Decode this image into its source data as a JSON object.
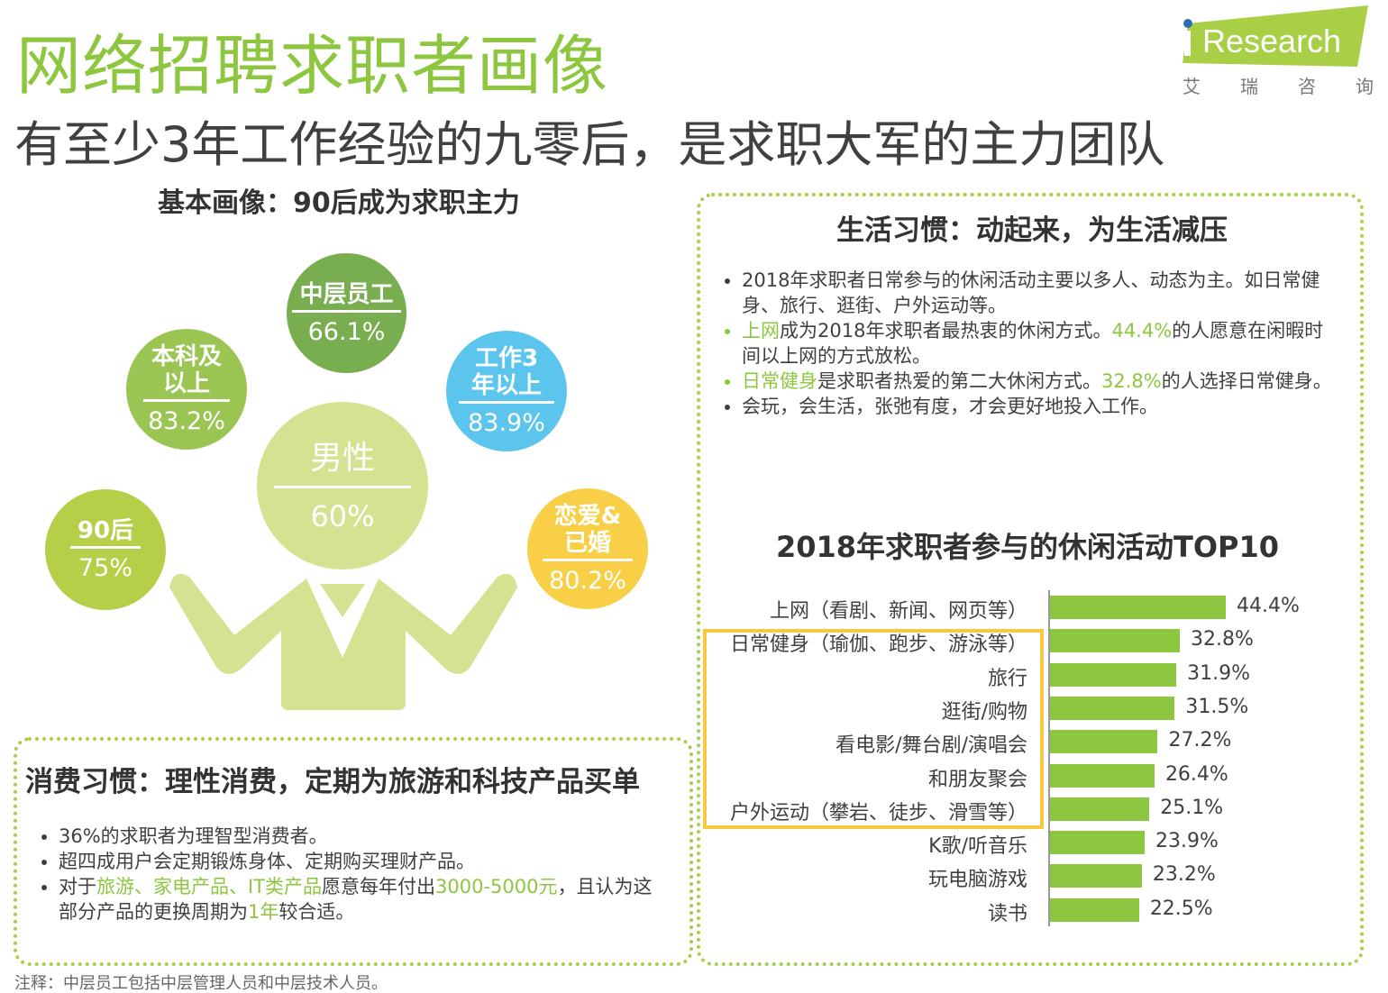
{
  "header": {
    "title": "网络招聘求职者画像",
    "subtitle": "有至少3年工作经验的九零后，是求职大军的主力团队",
    "logo_text": "iResearch",
    "logo_cn": [
      "艾",
      "瑞",
      "咨",
      "询"
    ]
  },
  "basic": {
    "title": "基本画像：90后成为求职主力",
    "circles": [
      {
        "label": "中层员工",
        "value": "66.1%",
        "color": "#78ad50"
      },
      {
        "label": "本科及以上",
        "value": "83.2%",
        "color": "#9bc553"
      },
      {
        "label": "工作3年以上",
        "value": "83.9%",
        "color": "#5bc5ee"
      },
      {
        "label": "90后",
        "value": "75%",
        "color": "#b5cf48"
      },
      {
        "label": "男性",
        "value": "60%",
        "color": "#d4e291"
      },
      {
        "label": "恋爱&已婚",
        "value": "80.2%",
        "color": "#f8cf46"
      }
    ]
  },
  "life": {
    "title": "生活习惯：动起来，为生活减压",
    "b1": "2018年求职者日常参与的休闲活动主要以多人、动态为主。如日常健身、旅行、逛街、户外运动等。",
    "b2a": "上网",
    "b2b": "成为2018年求职者最热衷的休闲方式。",
    "b2c": "44.4%",
    "b2d": "的人愿意在闲暇时间以上网的方式放松。",
    "b3a": "日常健身",
    "b3b": "是求职者热爱的第二大休闲方式。",
    "b3c": "32.8%",
    "b3d": "的人选择日常健身。",
    "b4": "会玩，会生活，张弛有度，才会更好地投入工作。"
  },
  "consume": {
    "title": "消费习惯：理性消费，定期为旅游和科技产品买单",
    "b1": "36%的求职者为理智型消费者。",
    "b2": "超四成用户会定期锻炼身体、定期购买理财产品。",
    "b3a": "对于",
    "b3b": "旅游、家电产品、IT类产品",
    "b3c": "愿意每年付出",
    "b3d": "3000-5000元",
    "b3e": "，且认为这部分产品的更换周期为",
    "b3f": "1年",
    "b3g": "较合适。"
  },
  "note": "注释：中层员工包括中层管理人员和中层技术人员。",
  "chart_data": {
    "type": "bar",
    "orientation": "horizontal",
    "title": "2018年求职者参与的休闲活动TOP10",
    "categories": [
      "上网（看剧、新闻、网页等）",
      "日常健身（瑜伽、跑步、游泳等）",
      "旅行",
      "逛街/购物",
      "看电影/舞台剧/演唱会",
      "和朋友聚会",
      "户外运动（攀岩、徒步、滑雪等）",
      "K歌/听音乐",
      "玩电脑游戏",
      "读书"
    ],
    "values": [
      44.4,
      32.8,
      31.9,
      31.5,
      27.2,
      26.4,
      25.1,
      23.9,
      23.2,
      22.5
    ],
    "value_labels": [
      "44.4%",
      "32.8%",
      "31.9%",
      "31.5%",
      "27.2%",
      "26.4%",
      "25.1%",
      "23.9%",
      "23.2%",
      "22.5%"
    ],
    "highlighted_range": [
      "日常健身（瑜伽、跑步、游泳等）",
      "户外运动（攀岩、徒步、滑雪等）"
    ],
    "bar_color": "#8dc63f",
    "highlight_color": "#f7c842"
  }
}
